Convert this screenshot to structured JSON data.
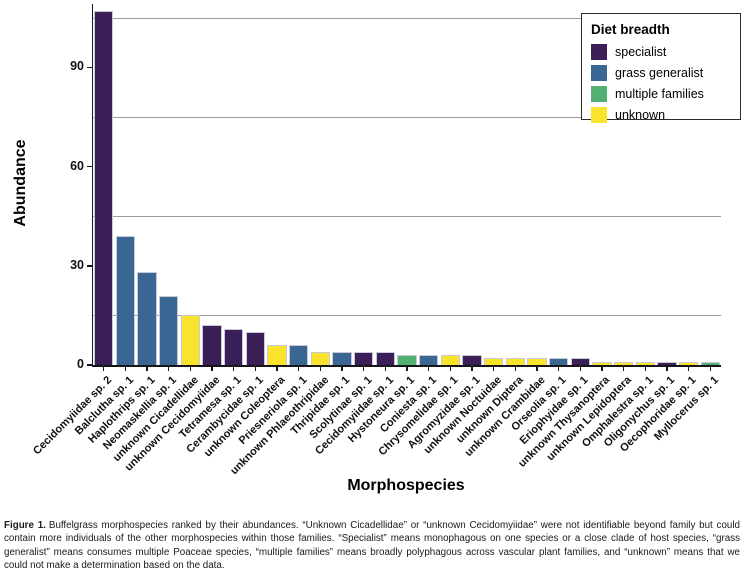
{
  "chart_data": {
    "type": "bar",
    "title": "",
    "xlabel": "Morphospecies",
    "ylabel": "Abundance",
    "ylim": [
      0,
      109
    ],
    "yticks": [
      0,
      30,
      60,
      90
    ],
    "minor_gridlines_y": [
      15,
      45,
      75,
      105
    ],
    "grid": "horizontal-minor-only",
    "gridline_color": "#9a9a9a",
    "axis_color": "#161616",
    "bar_border_color": "#c9cad8",
    "legend": {
      "title": "Diet breadth",
      "position": "top-right",
      "items": [
        {
          "label": "specialist",
          "color": "#3b1f59"
        },
        {
          "label": "grass generalist",
          "color": "#3a6694"
        },
        {
          "label": "multiple families",
          "color": "#52b073"
        },
        {
          "label": "unknown",
          "color": "#f9e32d"
        }
      ]
    },
    "categories": [
      "Cecidomyiidae sp. 2",
      "Balclutha sp. 1",
      "Haplothrips sp. 1",
      "Neomaskellia sp. 1",
      "unknown Cicadellidae",
      "unknown Cecidomyiidae",
      "Tetramesa sp. 1",
      "Cerambycidae sp. 1",
      "unknown Coleoptera",
      "Priesneriola sp. 1",
      "unknown Phlaeothripidae",
      "Thripidae sp. 1",
      "Scolytinae sp. 1",
      "Cecidomyiidae sp. 1",
      "Hystoneura sp. 1",
      "Coniesta sp. 1",
      "Chrysomelidae sp. 1",
      "Agromyzidae sp. 1",
      "unknown Noctuidae",
      "unknown Diptera",
      "unknown Crambidae",
      "Orseolia sp. 1",
      "Eriophyidae sp. 1",
      "unknown Thysanoptera",
      "unknown Lepidoptera",
      "Omphalestra sp. 1",
      "Oligonychus sp. 1",
      "Oecophoridae sp. 1",
      "Myllocerus sp. 1"
    ],
    "values": [
      107,
      39,
      28,
      21,
      15,
      12,
      11,
      10,
      6,
      6,
      4,
      4,
      4,
      4,
      3,
      3,
      3,
      3,
      2,
      2,
      2,
      2,
      2,
      1,
      1,
      1,
      1,
      1,
      1
    ],
    "diet_breadth": [
      "specialist",
      "grass generalist",
      "grass generalist",
      "grass generalist",
      "unknown",
      "specialist",
      "specialist",
      "specialist",
      "unknown",
      "grass generalist",
      "unknown",
      "grass generalist",
      "specialist",
      "specialist",
      "multiple families",
      "grass generalist",
      "unknown",
      "specialist",
      "unknown",
      "unknown",
      "unknown",
      "grass generalist",
      "specialist",
      "unknown",
      "unknown",
      "unknown",
      "specialist",
      "unknown",
      "multiple families"
    ]
  },
  "caption": {
    "label": "Figure 1.",
    "text": "Buffelgrass morphospecies ranked by their abundances. “Unknown Cicadellidae” or “unknown Cecidomyiidae” were not identifiable beyond family but could contain more individuals of the other morphospecies within those families. “Specialist” means monophagous on one species or a close clade of host species, “grass generalist” means consumes multiple Poaceae species, “multiple families” means broadly polyphagous across vascular plant families, and “unknown” means that we could not make a determination based on the data."
  }
}
